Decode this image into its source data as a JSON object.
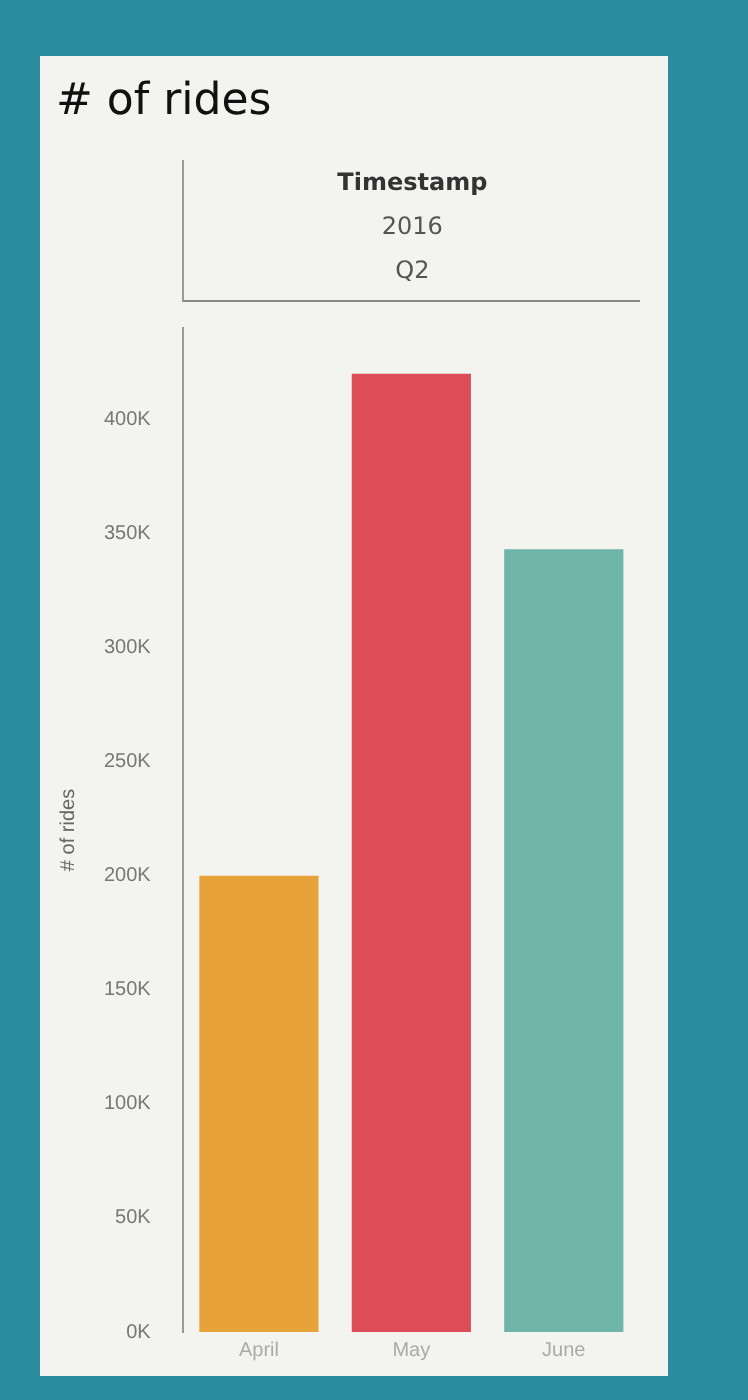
{
  "chart_data": {
    "type": "bar",
    "title": "# of rides",
    "ylabel": "# of rides",
    "annotations": [
      "Timestamp",
      "2016",
      "Q2"
    ],
    "categories": [
      "April",
      "May",
      "June"
    ],
    "values": [
      200000,
      420000,
      343000
    ],
    "colors": [
      "#e8a23a",
      "#dd4d57",
      "#6fb5aa"
    ],
    "ylim": [
      0,
      440000
    ],
    "yticks": [
      {
        "value": 0,
        "label": "0K"
      },
      {
        "value": 50000,
        "label": "50K"
      },
      {
        "value": 100000,
        "label": "100K"
      },
      {
        "value": 150000,
        "label": "150K"
      },
      {
        "value": 200000,
        "label": "200K"
      },
      {
        "value": 250000,
        "label": "250K"
      },
      {
        "value": 300000,
        "label": "300K"
      },
      {
        "value": 350000,
        "label": "350K"
      },
      {
        "value": 400000,
        "label": "400K"
      }
    ],
    "grid": false,
    "legend": false
  }
}
